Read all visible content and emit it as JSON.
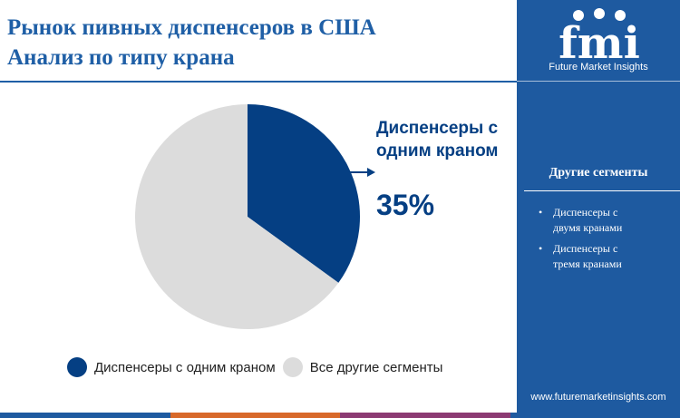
{
  "title_lines": [
    "Рынок пивных диспенсеров в США",
    "Анализ по типу крана"
  ],
  "chart_data": {
    "type": "pie",
    "slices": [
      {
        "label": "Диспенсеры с одним краном",
        "value": 35,
        "color": "#053f83"
      },
      {
        "label": "Все другие сегменты",
        "value": 65,
        "color": "#dcdcdc"
      }
    ],
    "callout": {
      "label_lines": [
        "Диспенсеры с",
        "одним краном"
      ],
      "value": "35%"
    },
    "legend": [
      "Диспенсеры с одним краном",
      "Все другие сегменты"
    ]
  },
  "sidebar": {
    "logo_text": "fmi",
    "logo_subtitle": "Future Market Insights",
    "heading": "Другие сегменты",
    "items": [
      {
        "lines": [
          "Диспенсеры с",
          "двумя кранами"
        ]
      },
      {
        "lines": [
          "Диспенсеры с",
          "тремя кранами"
        ]
      }
    ],
    "website": "www.futuremarketinsights.com"
  },
  "colors": {
    "title": "#1f5fa6",
    "sidebar_bg": "#1e5aa0",
    "highlight": "#053f83",
    "other": "#dcdcdc",
    "bottom_bar": [
      "#1e5aa0",
      "#d8692a",
      "#8c3a73",
      "#1e5aa0"
    ]
  }
}
